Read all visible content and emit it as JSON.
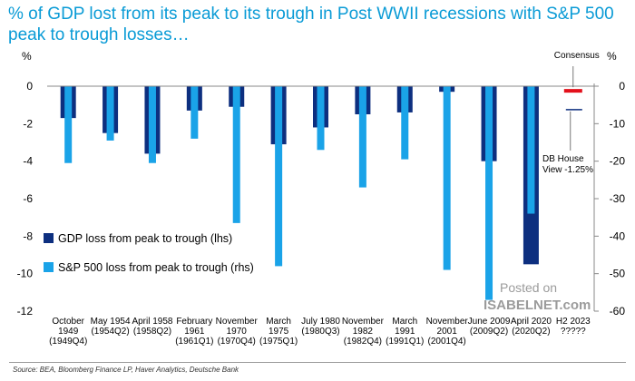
{
  "title": "% of GDP lost from its peak to its trough in Post WWII recessions with S&P 500 peak to trough losses…",
  "source": "Source: BEA, Bloomberg Finance LP, Haver Analytics, Deutsche Bank",
  "watermark": {
    "line1": "Posted on",
    "line2": "ISABELNET.com"
  },
  "colors": {
    "gdp": "#0d2f7f",
    "sp500": "#1aa3e8",
    "consensus": "#e3101b",
    "db_view": "#0d2f7f",
    "title": "#0a9bd6"
  },
  "chart_data": {
    "type": "bar",
    "left_axis": {
      "label": "%",
      "min": -12,
      "max": 0,
      "ticks": [
        "0",
        "-2",
        "-4",
        "-6",
        "-8",
        "-10",
        "-12"
      ]
    },
    "right_axis": {
      "label": "%",
      "min": -60,
      "max": 0,
      "ticks": [
        "0",
        "-10",
        "-20",
        "-30",
        "-40",
        "-50",
        "-60"
      ]
    },
    "categories": [
      [
        "October",
        "1949",
        "(1949Q4)"
      ],
      [
        "May 1954",
        "(1954Q2)"
      ],
      [
        "April 1958",
        "(1958Q2)"
      ],
      [
        "February",
        "1961",
        "(1961Q1)"
      ],
      [
        "November",
        "1970",
        "(1970Q4)"
      ],
      [
        "March",
        "1975",
        "(1975Q1)"
      ],
      [
        "July 1980",
        "(1980Q3)"
      ],
      [
        "November",
        "1982",
        "(1982Q4)"
      ],
      [
        "March",
        "1991",
        "(1991Q1)"
      ],
      [
        "November",
        "2001",
        "(2001Q4)"
      ],
      [
        "June 2009",
        "(2009Q2)"
      ],
      [
        "April 2020",
        "(2020Q2)"
      ],
      [
        "H2 2023",
        "?????"
      ]
    ],
    "series": [
      {
        "name": "GDP loss from peak to trough (lhs)",
        "axis": "left",
        "values": [
          -1.7,
          -2.5,
          -3.6,
          -1.3,
          -1.1,
          -3.1,
          -2.2,
          -1.5,
          -1.4,
          -0.3,
          -4.0,
          -9.5,
          null
        ]
      },
      {
        "name": "S&P 500 loss from peak to trough (rhs)",
        "axis": "right",
        "values": [
          -20.5,
          -14.5,
          -20.5,
          -14.0,
          -36.5,
          -48.0,
          -17.0,
          -27.0,
          -19.5,
          -49.0,
          -57.0,
          -34.0,
          null
        ]
      }
    ],
    "annotations": [
      {
        "label": "Consensus",
        "category_index": 12,
        "value": -0.2,
        "axis": "left"
      },
      {
        "label": "DB House View -1.25%",
        "label_lines": [
          "DB House",
          "View -1.25%"
        ],
        "category_index": 12,
        "value": -1.25,
        "axis": "left"
      }
    ]
  }
}
